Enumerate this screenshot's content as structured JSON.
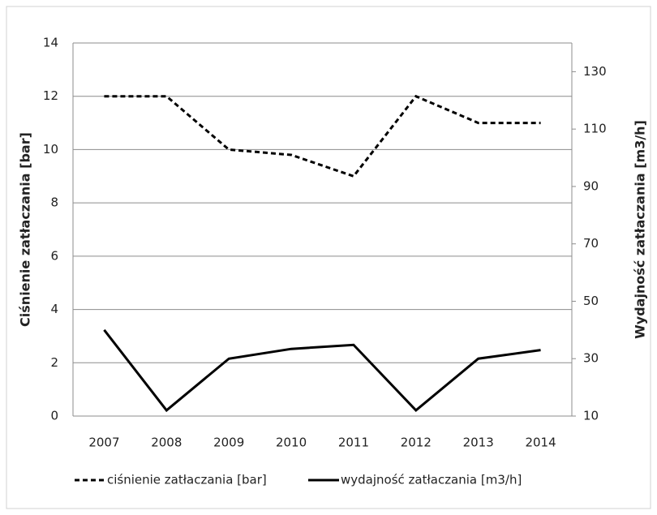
{
  "chart_data": {
    "type": "line",
    "categories": [
      "2007",
      "2008",
      "2009",
      "2010",
      "2011",
      "2012",
      "2013",
      "2014"
    ],
    "y_label": "Ciśnienie zatłaczania [bar]",
    "y2_label": "Wydajność zatłaczania [m3/h]",
    "ylim": [
      0,
      14
    ],
    "yticks": [
      0,
      2,
      4,
      6,
      8,
      10,
      12,
      14
    ],
    "y2lim": [
      10,
      140
    ],
    "y2ticks": [
      10,
      30,
      50,
      70,
      90,
      110,
      130
    ],
    "grid": true,
    "legend": "bottom",
    "series": [
      {
        "name": "ciśnienie zatłaczania [bar]",
        "color": "#000000",
        "line_style": "dashed",
        "values": [
          12,
          12,
          10,
          9.8,
          9,
          12,
          11,
          11
        ]
      },
      {
        "name": "wydajność zatłaczania [m3/h]",
        "color": "#000000",
        "line_style": "solid",
        "axis": "y2",
        "values": [
          40,
          12,
          30,
          33.4,
          34.8,
          12,
          30,
          33
        ]
      }
    ]
  }
}
